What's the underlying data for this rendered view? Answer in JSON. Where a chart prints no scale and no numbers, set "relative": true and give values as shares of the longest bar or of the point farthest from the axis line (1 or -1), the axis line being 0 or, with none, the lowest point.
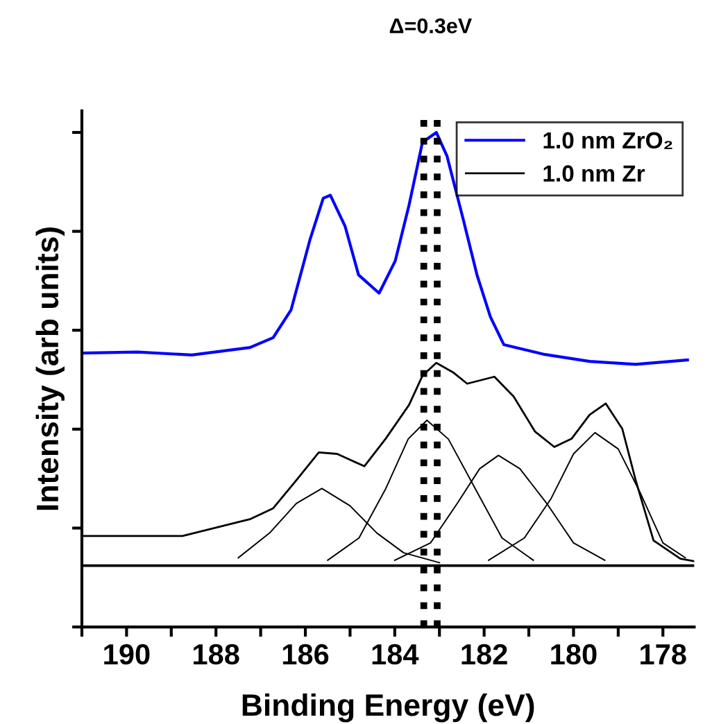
{
  "chart_data": {
    "type": "line",
    "relative": true,
    "xlabel": "Binding Energy (eV)",
    "ylabel": "Intensity (arb units)",
    "annotations": [
      "Δ=0.3eV"
    ],
    "xlim": [
      191,
      177.3
    ],
    "xticks": [
      {
        "value": 191,
        "label": null
      },
      190,
      {
        "value": 189,
        "label": null
      },
      188,
      {
        "value": 187,
        "label": null
      },
      186,
      {
        "value": 185,
        "label": null
      },
      184,
      {
        "value": 183,
        "label": null
      },
      182,
      {
        "value": 181,
        "label": null
      },
      180,
      {
        "value": 179,
        "label": null
      },
      178
    ],
    "legend": "top right",
    "grid": false,
    "marker": "none",
    "line_style": "solid",
    "ref_lines": [
      {
        "axis": "x",
        "value": 183.35,
        "color": "#000000",
        "line_style": "dotted"
      },
      {
        "axis": "x",
        "value": 183.05,
        "color": "#000000",
        "line_style": "dotted"
      }
    ],
    "series": [
      {
        "name": "1.0 nm ZrO₂",
        "color": "#0000ff",
        "x": [
          191.0,
          189.76,
          188.54,
          187.24,
          186.72,
          186.32,
          185.9,
          185.6,
          185.44,
          185.11,
          184.81,
          184.35,
          183.99,
          183.68,
          183.38,
          183.07,
          182.83,
          182.47,
          182.16,
          181.86,
          181.56,
          180.64,
          179.64,
          178.61,
          177.45
        ],
        "values": [
          0.554,
          0.556,
          0.55,
          0.565,
          0.585,
          0.641,
          0.782,
          0.867,
          0.873,
          0.81,
          0.712,
          0.675,
          0.74,
          0.853,
          0.98,
          1.0,
          0.952,
          0.825,
          0.712,
          0.627,
          0.571,
          0.551,
          0.537,
          0.531,
          0.54
        ]
      },
      {
        "name": "1.0 nm Zr",
        "color": "#000000",
        "x": [
          191.0,
          188.75,
          187.24,
          186.72,
          186.2,
          185.7,
          185.29,
          184.68,
          184.2,
          183.68,
          183.38,
          183.07,
          182.68,
          182.38,
          181.77,
          181.34,
          180.86,
          180.43,
          180.04,
          179.64,
          179.28,
          178.91,
          178.61,
          178.21,
          177.61,
          177.3
        ],
        "values": [
          0.184,
          0.184,
          0.218,
          0.24,
          0.297,
          0.353,
          0.35,
          0.325,
          0.381,
          0.449,
          0.508,
          0.534,
          0.514,
          0.492,
          0.506,
          0.466,
          0.395,
          0.364,
          0.381,
          0.429,
          0.452,
          0.401,
          0.297,
          0.175,
          0.138,
          0.133
        ]
      },
      {
        "color": "#000000",
        "x": [
          187.5,
          186.8,
          186.2,
          185.63,
          185.0,
          184.4,
          183.8,
          183.0
        ],
        "values": [
          0.14,
          0.19,
          0.25,
          0.28,
          0.245,
          0.19,
          0.15,
          0.13
        ]
      },
      {
        "color": "#000000",
        "x": [
          185.5,
          184.8,
          184.2,
          183.7,
          183.28,
          182.8,
          182.2,
          181.6,
          180.9
        ],
        "values": [
          0.135,
          0.18,
          0.28,
          0.38,
          0.418,
          0.38,
          0.28,
          0.18,
          0.135
        ]
      },
      {
        "color": "#000000",
        "x": [
          184.0,
          183.2,
          182.6,
          182.1,
          181.68,
          181.2,
          180.6,
          180.0,
          179.3
        ],
        "values": [
          0.135,
          0.17,
          0.25,
          0.32,
          0.347,
          0.32,
          0.25,
          0.17,
          0.135
        ]
      },
      {
        "color": "#000000",
        "x": [
          181.9,
          181.1,
          180.5,
          180.0,
          179.52,
          179.0,
          178.5,
          178.0,
          177.5
        ],
        "values": [
          0.135,
          0.18,
          0.26,
          0.35,
          0.393,
          0.36,
          0.27,
          0.17,
          0.14
        ]
      },
      {
        "color": "#000000",
        "x": [
          191.0,
          177.3
        ],
        "values": [
          0.124,
          0.124
        ]
      }
    ]
  }
}
